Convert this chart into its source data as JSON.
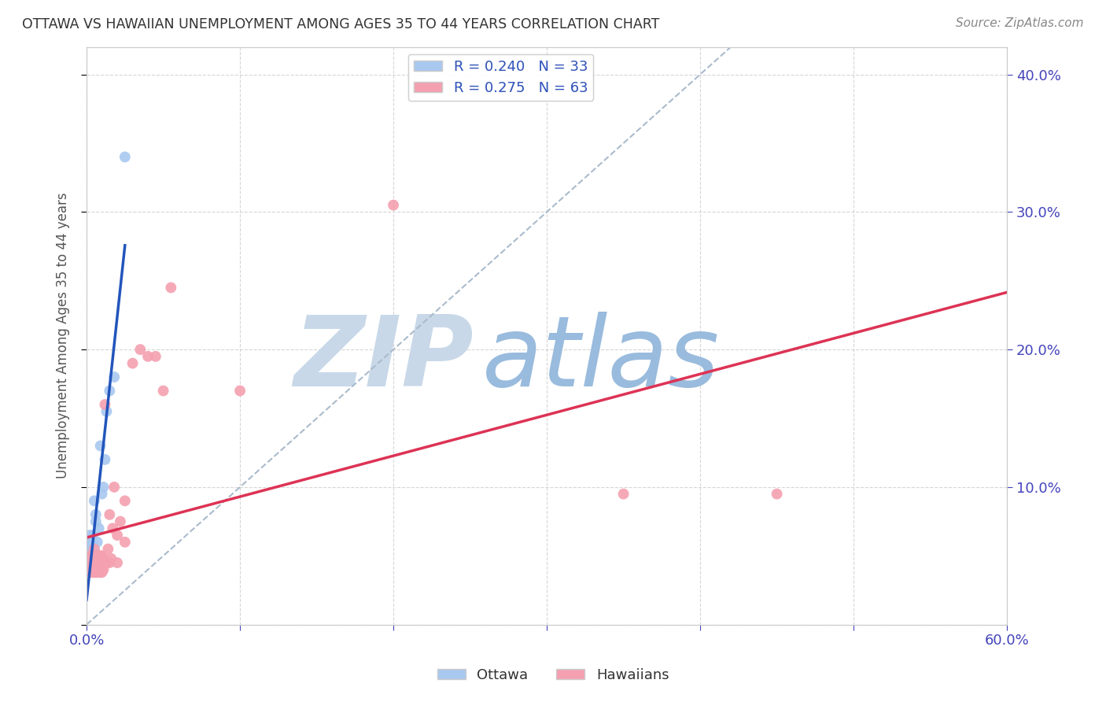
{
  "title": "OTTAWA VS HAWAIIAN UNEMPLOYMENT AMONG AGES 35 TO 44 YEARS CORRELATION CHART",
  "source": "Source: ZipAtlas.com",
  "ylabel": "Unemployment Among Ages 35 to 44 years",
  "xlim": [
    0,
    0.6
  ],
  "ylim": [
    0,
    0.42
  ],
  "xticks": [
    0.0,
    0.1,
    0.2,
    0.3,
    0.4,
    0.5,
    0.6
  ],
  "yticks": [
    0.0,
    0.1,
    0.2,
    0.3,
    0.4
  ],
  "ottawa_color": "#A8C8F0",
  "hawaiian_color": "#F4A0B0",
  "ottawa_line_color": "#2255BB",
  "hawaiian_line_color": "#DD3355",
  "diag_color": "#AABBCC",
  "ottawa_R": "0.240",
  "ottawa_N": "33",
  "hawaiian_R": "0.275",
  "hawaiian_N": "63",
  "ottawa_x": [
    0.001,
    0.001,
    0.001,
    0.002,
    0.002,
    0.002,
    0.002,
    0.002,
    0.003,
    0.003,
    0.003,
    0.003,
    0.003,
    0.004,
    0.004,
    0.004,
    0.004,
    0.005,
    0.005,
    0.005,
    0.005,
    0.006,
    0.006,
    0.007,
    0.008,
    0.009,
    0.01,
    0.011,
    0.012,
    0.013,
    0.015,
    0.018,
    0.025
  ],
  "ottawa_y": [
    0.04,
    0.045,
    0.05,
    0.042,
    0.048,
    0.055,
    0.06,
    0.065,
    0.042,
    0.045,
    0.05,
    0.055,
    0.058,
    0.048,
    0.052,
    0.058,
    0.065,
    0.048,
    0.052,
    0.055,
    0.09,
    0.075,
    0.08,
    0.06,
    0.07,
    0.13,
    0.095,
    0.1,
    0.12,
    0.155,
    0.17,
    0.18,
    0.34
  ],
  "hawaiian_x": [
    0.001,
    0.001,
    0.002,
    0.002,
    0.002,
    0.002,
    0.003,
    0.003,
    0.003,
    0.003,
    0.003,
    0.004,
    0.004,
    0.004,
    0.004,
    0.005,
    0.005,
    0.005,
    0.005,
    0.006,
    0.006,
    0.006,
    0.006,
    0.007,
    0.007,
    0.007,
    0.007,
    0.008,
    0.008,
    0.008,
    0.008,
    0.009,
    0.009,
    0.009,
    0.01,
    0.01,
    0.01,
    0.011,
    0.011,
    0.012,
    0.012,
    0.013,
    0.014,
    0.015,
    0.015,
    0.016,
    0.017,
    0.018,
    0.02,
    0.02,
    0.022,
    0.025,
    0.025,
    0.03,
    0.035,
    0.04,
    0.045,
    0.05,
    0.055,
    0.1,
    0.2,
    0.35,
    0.45
  ],
  "hawaiian_y": [
    0.04,
    0.045,
    0.038,
    0.042,
    0.045,
    0.05,
    0.038,
    0.04,
    0.042,
    0.045,
    0.048,
    0.038,
    0.04,
    0.042,
    0.05,
    0.038,
    0.04,
    0.05,
    0.055,
    0.038,
    0.04,
    0.042,
    0.045,
    0.038,
    0.04,
    0.045,
    0.05,
    0.038,
    0.042,
    0.045,
    0.05,
    0.038,
    0.042,
    0.05,
    0.038,
    0.042,
    0.05,
    0.04,
    0.048,
    0.045,
    0.16,
    0.045,
    0.055,
    0.045,
    0.08,
    0.048,
    0.07,
    0.1,
    0.045,
    0.065,
    0.075,
    0.06,
    0.09,
    0.19,
    0.2,
    0.195,
    0.195,
    0.17,
    0.245,
    0.17,
    0.305,
    0.095,
    0.095
  ],
  "background_color": "#FFFFFF",
  "grid_color": "#CCCCCC",
  "title_color": "#333333",
  "watermark_zip_color": "#C8D8E8",
  "watermark_atlas_color": "#99BBDD"
}
